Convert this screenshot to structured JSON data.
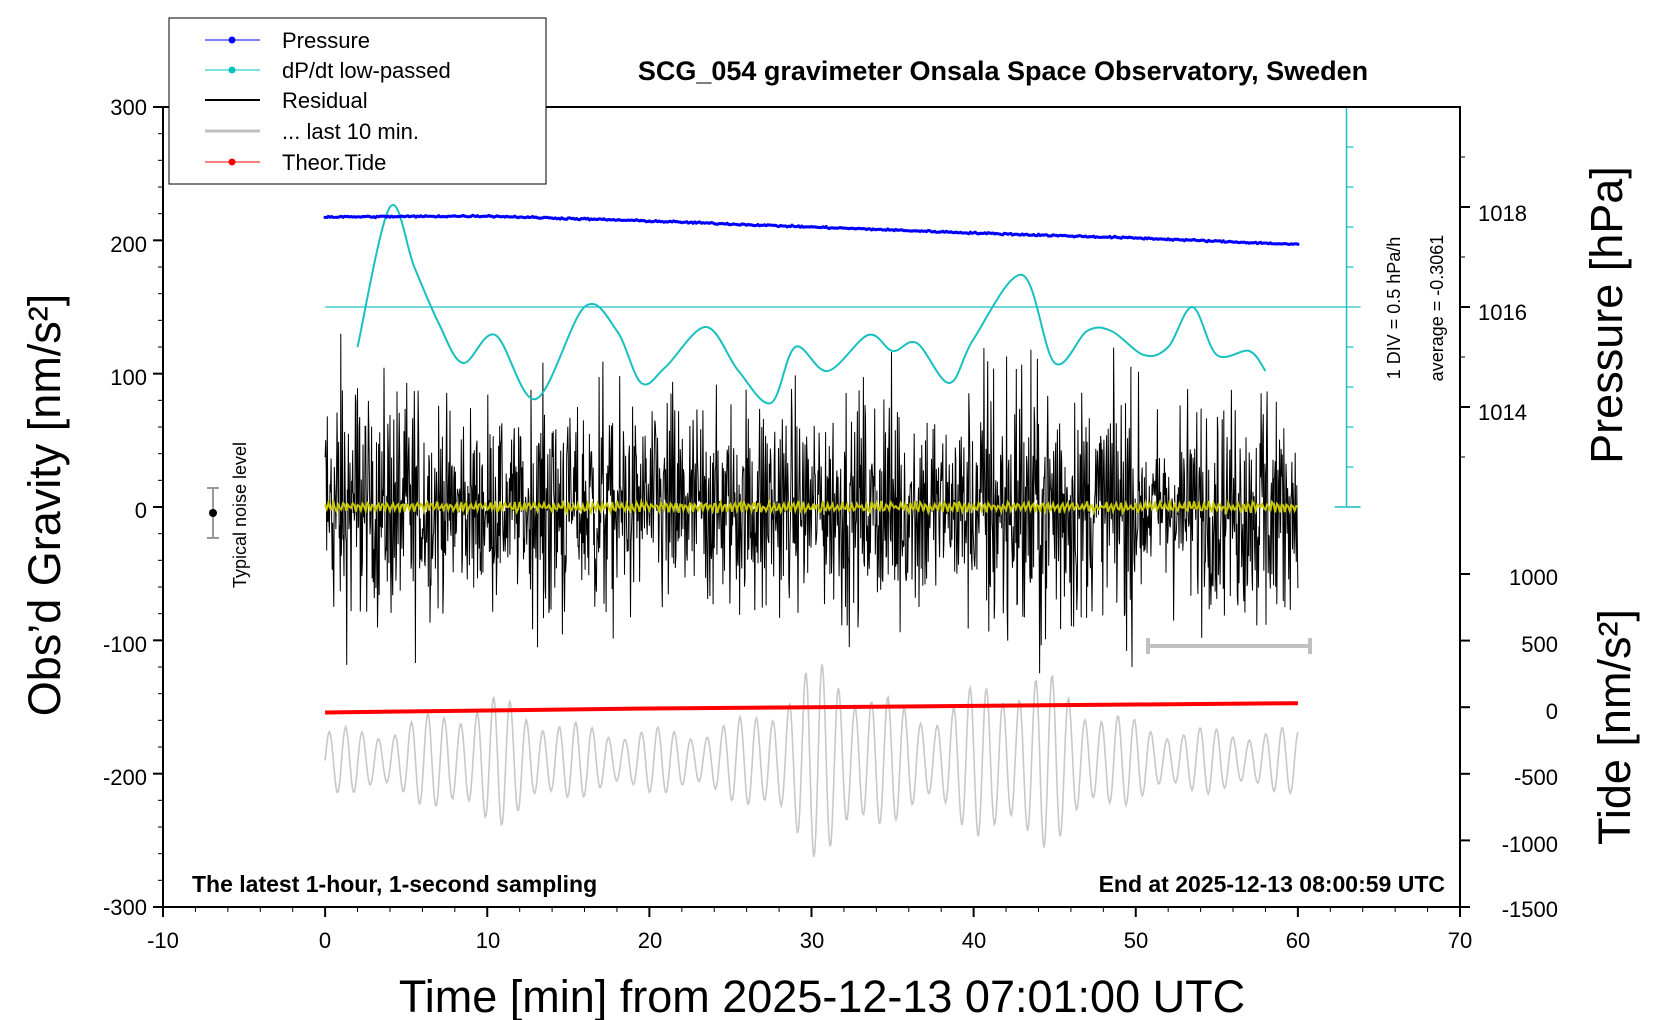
{
  "chart_data": {
    "type": "line",
    "title": "SCG_054 gravimeter Onsala Space Observatory, Sweden",
    "xlabel": "Time [min] from 2025-12-13 07:01:00 UTC",
    "ylabel_left": "Obs’d Gravity [nm/s²]",
    "ylabel_pressure_main": "Pressure [hPa]",
    "ylabel_tide_main": "Tide [nm/s²]",
    "xlim": [
      -10,
      70
    ],
    "ylim_left": [
      -300,
      300
    ],
    "ylim_pressure": [
      1012,
      1020
    ],
    "ylim_tide": [
      -1500,
      1000
    ],
    "x_ticks": [
      "-10",
      "0",
      "10",
      "20",
      "30",
      "40",
      "50",
      "60",
      "70"
    ],
    "y_ticks_left": [
      "300",
      "200",
      "100",
      "0",
      "-100",
      "-200",
      "-300"
    ],
    "y_ticks_pressure": [
      "1018",
      "1016",
      "1014"
    ],
    "y_ticks_tide": [
      "1000",
      "500",
      "0",
      "-500",
      "-1000",
      "-1500"
    ],
    "annotation_bottom_left": "The latest 1-hour, 1-second sampling",
    "annotation_bottom_right": "End at 2025-12-13 08:00:59 UTC",
    "noise_label": "Typical noise level",
    "dpdt_scale_label": "1 DIV = 0.5 hPa/h",
    "dpdt_average_label": "average = -0.3061",
    "legend": [
      {
        "label": "Pressure",
        "color": "#0000ff"
      },
      {
        "label": "dP/dt low-passed",
        "color": "#00c0c0"
      },
      {
        "label": "Residual",
        "color": "#000000"
      },
      {
        "label": "... last 10 min.",
        "color": "#c0c0c0"
      },
      {
        "label": "Theor.Tide",
        "color": "#ff0000"
      }
    ],
    "series": [
      {
        "name": "Pressure",
        "axis": "pressure",
        "x": [
          0,
          10,
          20,
          30,
          40,
          50,
          60
        ],
        "values": [
          1017.8,
          1017.82,
          1017.72,
          1017.6,
          1017.48,
          1017.38,
          1017.25
        ]
      },
      {
        "name": "dP/dt low-passed",
        "axis": "dpdt_div",
        "x": [
          2,
          4,
          5.5,
          7,
          8.5,
          10.5,
          13,
          16,
          18,
          19.5,
          21,
          23.5,
          25.5,
          27.5,
          29,
          31,
          33.5,
          35,
          36.5,
          38.5,
          40,
          43,
          45,
          47,
          48.5,
          50.5,
          52,
          53.5,
          55,
          57,
          58
        ],
        "values": [
          4,
          7.5,
          6.0,
          4.6,
          3.6,
          4.3,
          2.7,
          5.0,
          4.4,
          3.1,
          3.5,
          4.5,
          3.4,
          2.6,
          4.0,
          3.4,
          4.3,
          3.9,
          4.1,
          3.1,
          4.2,
          5.8,
          3.6,
          4.4,
          4.4,
          3.8,
          4.0,
          5.0,
          3.8,
          3.9,
          3.4
        ]
      },
      {
        "name": "Theor.Tide",
        "axis": "tide",
        "x": [
          0,
          10,
          20,
          30,
          40,
          50,
          60
        ],
        "values": [
          -40,
          -25,
          -10,
          0,
          10,
          20,
          30
        ]
      }
    ]
  }
}
